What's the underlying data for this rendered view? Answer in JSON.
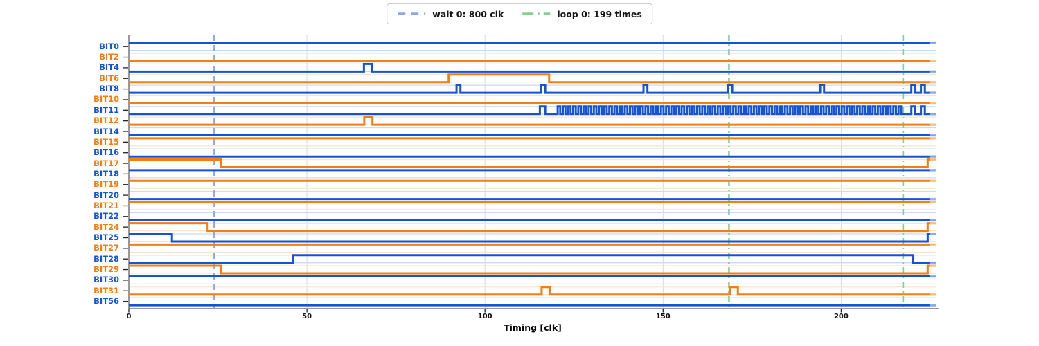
{
  "legend": {
    "items": [
      {
        "label": "wait 0: 800 clk",
        "color": "#8da6e6",
        "style": "dashed"
      },
      {
        "label": "loop 0: 199 times",
        "color": "#7fd38f",
        "style": "dashdot"
      }
    ]
  },
  "axis": {
    "xlabel": "Timing [clk]",
    "x_ticks": [
      "0",
      "50",
      "100",
      "150",
      "200"
    ]
  },
  "palette": {
    "blue": "#1453d6",
    "orange": "#f67d0f",
    "blue_faint": "#ccd9f4",
    "orange_faint": "#fce4cb",
    "grid": "#d7dbe2",
    "spine": "#333333",
    "tick": "#222222"
  },
  "chart_data": {
    "type": "line",
    "subtype": "digital-timing-diagram",
    "title": "",
    "xlabel": "Timing [clk]",
    "ylabel": "",
    "xlim": [
      0,
      227.5
    ],
    "x_tick_values": [
      0,
      50,
      100,
      150,
      200
    ],
    "t_end": 224.8,
    "grid": "vertical-at-x-ticks, faint per-signal level guides",
    "legend_position": "top-center-outside",
    "vlines": [
      {
        "name": "wait 0: 800 clk",
        "x": 24.0,
        "style": "dashed",
        "color": "#8da6e6"
      },
      {
        "name": "loop 0: 199 times",
        "x": 168.5,
        "style": "dashdot",
        "color": "#7fd38f"
      },
      {
        "name": "loop 0: 199 times",
        "x": 217.4,
        "style": "dashdot",
        "color": "#7fd38f"
      }
    ],
    "signals": [
      {
        "label": "BIT0",
        "color": "blue",
        "initial": 1,
        "changes": []
      },
      {
        "label": "BIT2",
        "color": "orange",
        "initial": 0,
        "changes": []
      },
      {
        "label": "BIT4",
        "color": "blue",
        "initial": 0,
        "changes": [
          [
            66.0,
            1
          ],
          [
            68.3,
            0
          ]
        ]
      },
      {
        "label": "BIT6",
        "color": "orange",
        "initial": 0,
        "changes": [
          [
            89.8,
            1
          ],
          [
            118.0,
            0
          ]
        ]
      },
      {
        "label": "BIT8",
        "color": "blue",
        "initial": 0,
        "changes": [
          [
            92.0,
            1
          ],
          [
            93.1,
            0
          ],
          [
            115.8,
            1
          ],
          [
            116.9,
            0
          ],
          [
            144.5,
            1
          ],
          [
            145.6,
            0
          ],
          [
            168.3,
            1
          ],
          [
            169.4,
            0
          ],
          [
            194.1,
            1
          ],
          [
            195.2,
            0
          ],
          [
            219.7,
            1
          ],
          [
            220.8,
            0
          ],
          [
            222.4,
            1
          ],
          [
            223.5,
            0
          ]
        ]
      },
      {
        "label": "BIT10",
        "color": "orange",
        "initial": 0,
        "changes": []
      },
      {
        "label": "BIT11",
        "color": "blue",
        "initial": 0,
        "changes": [
          [
            115.4,
            1
          ],
          [
            116.9,
            0
          ],
          [
            219.7,
            1
          ],
          [
            220.8,
            0
          ],
          [
            222.4,
            1
          ],
          [
            223.5,
            0
          ]
        ],
        "osc": {
          "start": 120.4,
          "end": 217.3,
          "period": 1.45
        }
      },
      {
        "label": "BIT12",
        "color": "orange",
        "initial": 0,
        "changes": [
          [
            66.1,
            1
          ],
          [
            68.4,
            0
          ]
        ]
      },
      {
        "label": "BIT14",
        "color": "blue",
        "initial": 0,
        "changes": []
      },
      {
        "label": "BIT15",
        "color": "orange",
        "initial": 1,
        "changes": []
      },
      {
        "label": "BIT16",
        "color": "blue",
        "initial": 0,
        "changes": []
      },
      {
        "label": "BIT17",
        "color": "orange",
        "initial": 1,
        "changes": [
          [
            25.9,
            0
          ],
          [
            224.3,
            1
          ]
        ]
      },
      {
        "label": "BIT18",
        "color": "blue",
        "initial": 1,
        "changes": []
      },
      {
        "label": "BIT19",
        "color": "orange",
        "initial": 1,
        "changes": []
      },
      {
        "label": "BIT20",
        "color": "blue",
        "initial": 0,
        "changes": []
      },
      {
        "label": "BIT21",
        "color": "orange",
        "initial": 1,
        "changes": []
      },
      {
        "label": "BIT22",
        "color": "blue",
        "initial": 0,
        "changes": []
      },
      {
        "label": "BIT24",
        "color": "orange",
        "initial": 1,
        "changes": [
          [
            22.1,
            0
          ],
          [
            224.3,
            1
          ]
        ]
      },
      {
        "label": "BIT25",
        "color": "blue",
        "initial": 1,
        "changes": [
          [
            12.1,
            0
          ],
          [
            224.3,
            1
          ]
        ]
      },
      {
        "label": "BIT27",
        "color": "orange",
        "initial": 1,
        "changes": []
      },
      {
        "label": "BIT28",
        "color": "blue",
        "initial": 0,
        "changes": [
          [
            46.1,
            1
          ],
          [
            220.2,
            0
          ]
        ]
      },
      {
        "label": "BIT29",
        "color": "orange",
        "initial": 1,
        "changes": [
          [
            25.9,
            0
          ],
          [
            224.3,
            1
          ]
        ]
      },
      {
        "label": "BIT30",
        "color": "blue",
        "initial": 1,
        "changes": []
      },
      {
        "label": "BIT31",
        "color": "orange",
        "initial": 0,
        "changes": [
          [
            115.9,
            1
          ],
          [
            118.2,
            0
          ],
          [
            168.7,
            1
          ],
          [
            171.0,
            0
          ]
        ]
      },
      {
        "label": "BIT56",
        "color": "blue",
        "initial": 0,
        "changes": []
      }
    ]
  }
}
